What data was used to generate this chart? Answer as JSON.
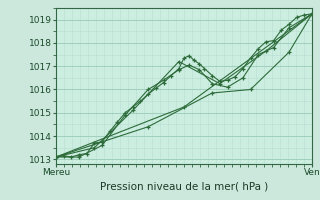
{
  "xlabel": "Pression niveau de la mer( hPa )",
  "xtick_labels": [
    "Mereu",
    "Ven"
  ],
  "ylim": [
    1012.8,
    1019.5
  ],
  "yticks": [
    1013,
    1014,
    1015,
    1016,
    1017,
    1018,
    1019
  ],
  "bg_color": "#cce8dc",
  "plot_bg_color": "#cceee0",
  "grid_major_color": "#99ccb8",
  "grid_minor_color": "#b8ddd0",
  "line_color": "#2d6b3a",
  "lines": [
    [
      0.0,
      1013.1,
      0.03,
      1013.15,
      0.06,
      1013.1,
      0.09,
      1013.2,
      0.12,
      1013.25,
      0.15,
      1013.7,
      0.18,
      1013.75,
      0.21,
      1014.2,
      0.24,
      1014.6,
      0.27,
      1015.0,
      0.3,
      1015.25,
      0.33,
      1015.5,
      0.36,
      1015.8,
      0.39,
      1016.05,
      0.42,
      1016.3,
      0.45,
      1016.6,
      0.48,
      1016.9,
      0.5,
      1017.35,
      0.52,
      1017.45,
      0.54,
      1017.25,
      0.56,
      1017.1,
      0.58,
      1016.9,
      0.61,
      1016.6,
      0.64,
      1016.35,
      0.67,
      1016.4,
      0.7,
      1016.55,
      0.73,
      1016.9,
      0.76,
      1017.35,
      0.79,
      1017.75,
      0.82,
      1018.05,
      0.85,
      1018.1,
      0.88,
      1018.55,
      0.91,
      1018.8,
      0.94,
      1019.1,
      0.97,
      1019.2,
      1.0,
      1019.25
    ],
    [
      0.0,
      1013.1,
      0.09,
      1013.1,
      0.18,
      1013.6,
      0.27,
      1014.9,
      0.36,
      1016.0,
      0.42,
      1016.4,
      0.48,
      1016.85,
      0.52,
      1017.05,
      0.56,
      1016.85,
      0.61,
      1016.25,
      0.67,
      1016.1,
      0.73,
      1016.5,
      0.79,
      1017.5,
      0.85,
      1017.8,
      0.91,
      1018.65,
      1.0,
      1019.25
    ],
    [
      0.0,
      1013.1,
      0.15,
      1013.5,
      0.3,
      1015.1,
      0.48,
      1017.2,
      0.64,
      1016.25,
      0.82,
      1017.65,
      1.0,
      1019.25
    ],
    [
      0.0,
      1013.1,
      0.5,
      1015.25,
      1.0,
      1019.25
    ],
    [
      0.0,
      1013.1,
      0.36,
      1014.4,
      0.61,
      1015.85,
      0.76,
      1016.0,
      0.91,
      1017.6,
      1.0,
      1019.25
    ]
  ]
}
